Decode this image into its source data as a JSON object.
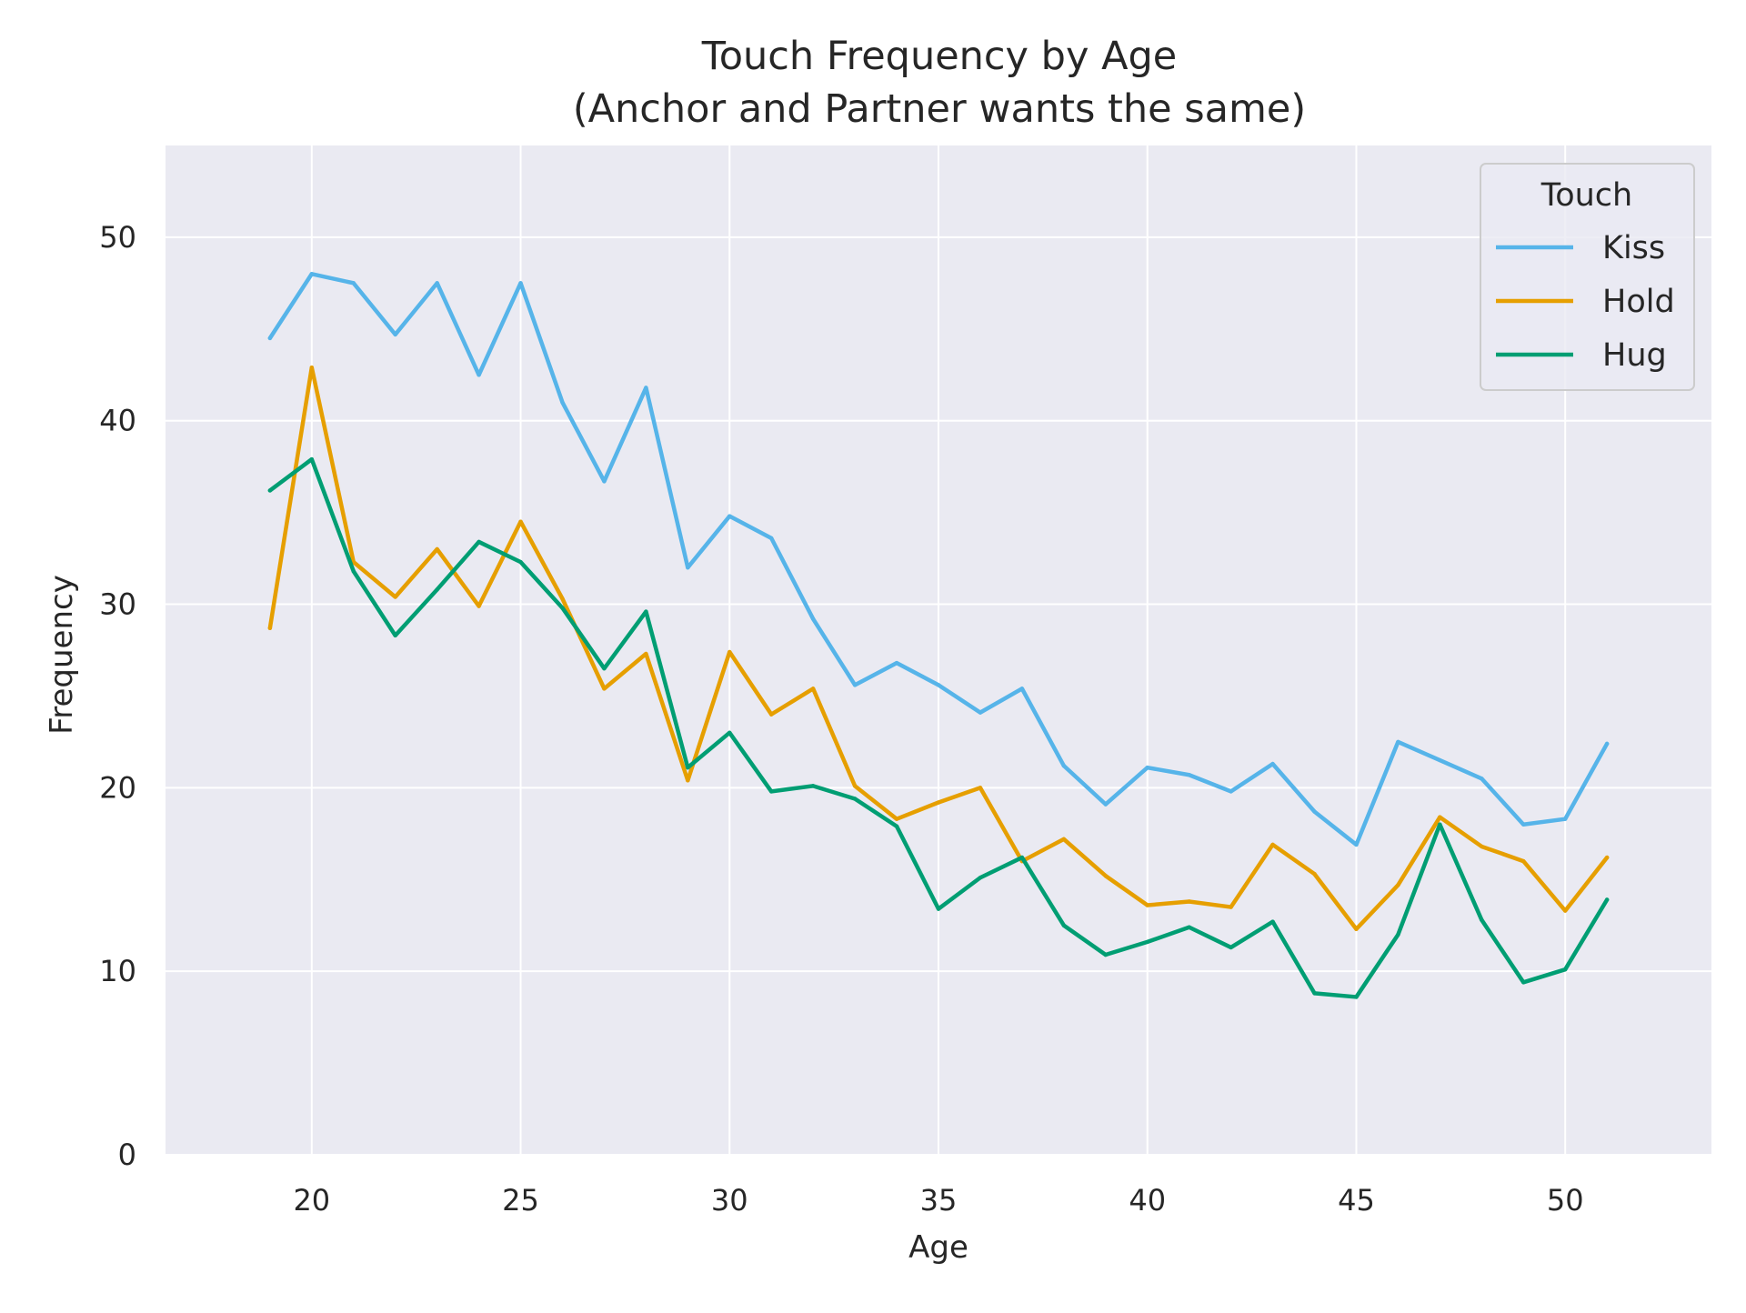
{
  "chart_data": {
    "type": "line",
    "title": "Touch Frequency by Age",
    "subtitle": "(Anchor and Partner wants the same)",
    "xlabel": "Age",
    "ylabel": "Frequency",
    "xlim": [
      16.5,
      53.5
    ],
    "ylim": [
      0,
      55
    ],
    "xticks": [
      20,
      25,
      30,
      35,
      40,
      45,
      50
    ],
    "yticks": [
      0,
      10,
      20,
      30,
      40,
      50
    ],
    "grid": true,
    "background_color": "#EAEAF2",
    "grid_color": "#FFFFFF",
    "legend": {
      "title": "Touch",
      "position": "top-right"
    },
    "x": [
      19,
      20,
      21,
      22,
      23,
      24,
      25,
      26,
      27,
      28,
      29,
      30,
      31,
      32,
      33,
      34,
      35,
      36,
      37,
      38,
      39,
      40,
      41,
      42,
      43,
      44,
      45,
      46,
      47,
      48,
      49,
      50,
      51
    ],
    "series": [
      {
        "name": "Kiss",
        "color": "#56B4E9",
        "values": [
          44.5,
          48.0,
          47.5,
          44.7,
          47.5,
          42.5,
          47.5,
          41.0,
          36.7,
          41.8,
          32.0,
          34.8,
          33.6,
          29.2,
          25.6,
          26.8,
          25.6,
          24.1,
          25.4,
          21.2,
          19.1,
          21.1,
          20.7,
          19.8,
          21.3,
          18.7,
          16.9,
          22.5,
          21.5,
          20.5,
          18.0,
          18.3,
          22.4
        ]
      },
      {
        "name": "Hold",
        "color": "#E69F00",
        "values": [
          28.7,
          42.9,
          32.3,
          30.4,
          33.0,
          29.9,
          34.5,
          30.3,
          25.4,
          27.3,
          20.4,
          27.4,
          24.0,
          25.4,
          20.1,
          18.3,
          19.2,
          20.0,
          16.0,
          17.2,
          15.2,
          13.6,
          13.8,
          13.5,
          16.9,
          15.3,
          12.3,
          14.7,
          18.4,
          16.8,
          16.0,
          13.3,
          16.2
        ]
      },
      {
        "name": "Hug",
        "color": "#009E73",
        "values": [
          36.2,
          37.9,
          31.8,
          28.3,
          30.8,
          33.4,
          32.3,
          29.8,
          26.5,
          29.6,
          21.1,
          23.0,
          19.8,
          20.1,
          19.4,
          17.9,
          13.4,
          15.1,
          16.2,
          12.5,
          10.9,
          11.6,
          12.4,
          11.3,
          12.7,
          8.8,
          8.6,
          12.0,
          18.0,
          12.8,
          9.4,
          10.1,
          13.9
        ]
      }
    ]
  }
}
